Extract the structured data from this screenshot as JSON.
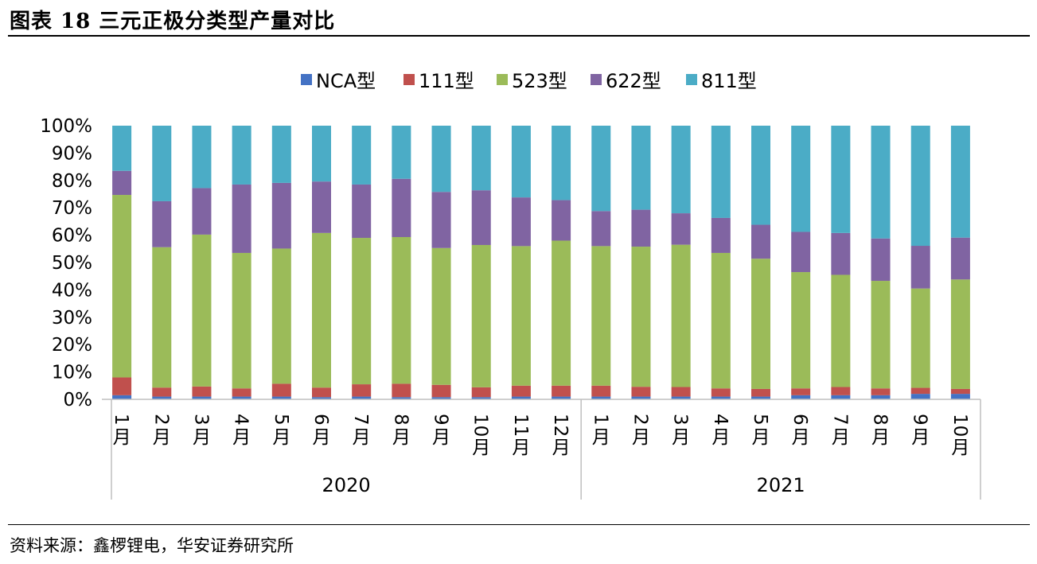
{
  "header": {
    "title": "图表 18 三元正极分类型产量对比"
  },
  "footer": {
    "source": "资料来源：鑫椤锂电，华安证券研究所"
  },
  "chart_data": {
    "type": "bar",
    "stacked": true,
    "percent": true,
    "ylim": [
      0,
      100
    ],
    "yticks": [
      "0%",
      "10%",
      "20%",
      "30%",
      "40%",
      "50%",
      "60%",
      "70%",
      "80%",
      "90%",
      "100%"
    ],
    "legend": [
      "NCA型",
      "111型",
      "523型",
      "622型",
      "811型"
    ],
    "legend_position": "top-center",
    "groups": [
      {
        "label": "2020",
        "categories": [
          "1月",
          "2月",
          "3月",
          "4月",
          "5月",
          "6月",
          "7月",
          "8月",
          "9月",
          "10月",
          "11月",
          "12月"
        ]
      },
      {
        "label": "2021",
        "categories": [
          "1月",
          "2月",
          "3月",
          "4月",
          "5月",
          "6月",
          "7月",
          "8月",
          "9月",
          "10月"
        ]
      }
    ],
    "series": [
      {
        "name": "NCA型",
        "color": "#4472C4",
        "values": [
          1.5,
          1,
          1,
          1,
          1,
          0.8,
          1,
          0.8,
          0.8,
          0.8,
          1,
          1,
          1,
          1,
          1,
          1,
          1,
          1.5,
          1.5,
          1.5,
          2,
          2
        ]
      },
      {
        "name": "111型",
        "color": "#C0504D",
        "values": [
          6.5,
          3.3,
          3.7,
          3,
          4.7,
          3.5,
          4.5,
          4.9,
          4.5,
          3.6,
          4,
          4,
          4,
          3.6,
          3.5,
          3,
          2.8,
          2.5,
          3,
          2.5,
          2.2,
          1.8
        ]
      },
      {
        "name": "523型",
        "color": "#9BBB59",
        "values": [
          66.7,
          51.3,
          55.5,
          49.5,
          49.4,
          56.5,
          53.5,
          53.6,
          50,
          52,
          51,
          53,
          51,
          51.2,
          52,
          49.5,
          47.6,
          42.5,
          41,
          39.3,
          36.3,
          40
        ]
      },
      {
        "name": "622型",
        "color": "#8064A2",
        "values": [
          8.8,
          16.8,
          17,
          25,
          24,
          18.8,
          19.5,
          21.3,
          20.5,
          20,
          17.8,
          14.8,
          12.8,
          13.5,
          11.5,
          12.8,
          12.4,
          14.7,
          15.3,
          15.5,
          15.6,
          15.3
        ]
      },
      {
        "name": "811型",
        "color": "#4BACC6",
        "values": [
          16.5,
          27.6,
          22.8,
          21.5,
          20.9,
          20.4,
          21.5,
          19.4,
          24.2,
          23.6,
          26.2,
          27.2,
          31.2,
          30.7,
          32,
          33.7,
          36.2,
          38.8,
          39.2,
          41.2,
          43.9,
          40.9
        ]
      }
    ]
  }
}
